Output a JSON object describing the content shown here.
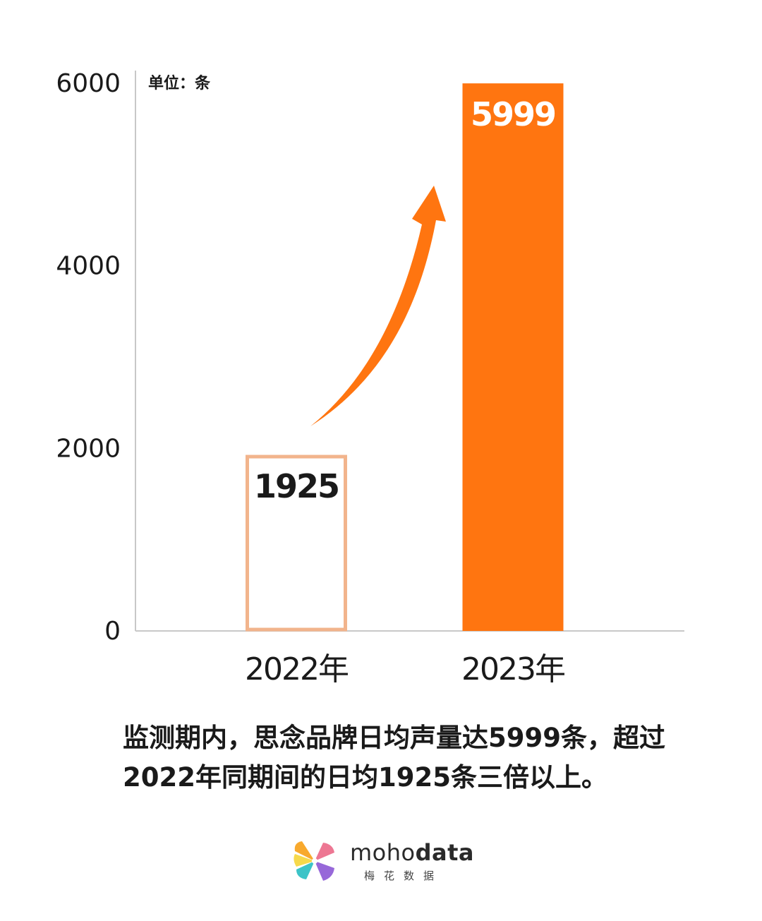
{
  "chart_data": {
    "type": "bar",
    "unit_label": "单位：条",
    "categories": [
      "2022年",
      "2023年"
    ],
    "values": [
      1925,
      5999
    ],
    "value_labels": [
      "1925",
      "5999"
    ],
    "yticks": [
      "0",
      "2000",
      "4000",
      "6000"
    ],
    "ylim": [
      0,
      6000
    ],
    "grid": false,
    "colors": {
      "bar_2022_outline": "#f2b48c",
      "bar_2023_fill": "#ff7510",
      "arrow": "#ff7510",
      "axis": "#c8c8c8"
    }
  },
  "caption": {
    "line1": "监测期内，思念品牌日均声量达5999条，超过",
    "line2": "2022年同期间的日均1925条三倍以上。"
  },
  "logo": {
    "word_light": "moho",
    "word_bold": "data",
    "subtitle": "梅花数据",
    "petal_colors": [
      "#f7a21b",
      "#ec6b8a",
      "#8e5bd6",
      "#2bbfc3",
      "#f5d63c"
    ]
  }
}
